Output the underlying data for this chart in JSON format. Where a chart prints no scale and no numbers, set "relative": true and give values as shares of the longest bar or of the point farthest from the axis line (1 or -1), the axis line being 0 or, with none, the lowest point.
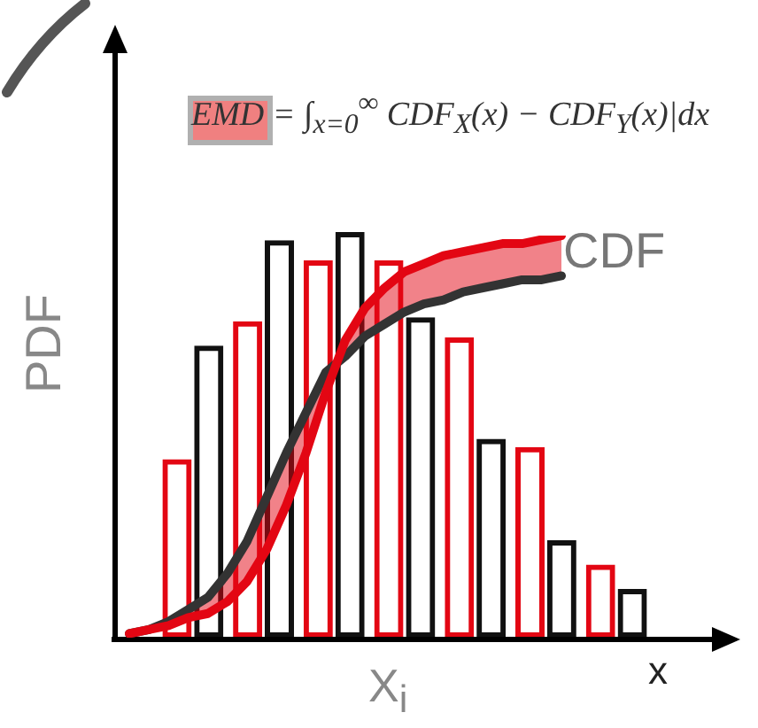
{
  "chart_data": [
    {
      "type": "bar",
      "relative": true,
      "xlabel": "X$_{i}$",
      "ylabel": "PDF",
      "annotations": [
        "x"
      ],
      "categories": [
        null,
        null,
        null,
        null,
        null,
        null,
        null
      ],
      "series": [
        {
          "color": "#e30613",
          "values": [
            0.44,
            0.78,
            0.93,
            0.93,
            0.74,
            0.47,
            0.18
          ]
        },
        {
          "color": "#111111",
          "values": [
            0.72,
            0.98,
            1,
            0.79,
            0.49,
            0.24,
            0.12
          ]
        }
      ]
    },
    {
      "type": "line",
      "relative": true,
      "annotations": [
        "EMD = ∫$_{x=0}$$^{∞}$ CDF$_{X}$(x) − CDF$_{Y}$(x)|dx",
        "CDF"
      ],
      "categories": [
        null,
        null,
        null,
        null,
        null,
        null,
        null,
        null,
        null,
        null,
        null,
        null,
        null,
        null,
        null,
        null,
        null,
        null,
        null,
        null,
        null,
        null,
        null
      ],
      "series": [
        {
          "color": "#e30613",
          "values": [
            0.01,
            0.02,
            0.03,
            0.05,
            0.06,
            0.09,
            0.14,
            0.22,
            0.33,
            0.46,
            0.61,
            0.74,
            0.82,
            0.87,
            0.91,
            0.93,
            0.95,
            0.96,
            0.97,
            0.98,
            0.98,
            0.99,
            1
          ],
          "upper": [
            0.01,
            0.02,
            0.03,
            0.05,
            0.06,
            0.09,
            0.14,
            0.22,
            0.33,
            0.46,
            0.61,
            0.74,
            0.82,
            0.87,
            0.91,
            0.93,
            0.95,
            0.96,
            0.97,
            0.98,
            0.98,
            0.99,
            1
          ],
          "lower": [
            0.01,
            0.02,
            0.04,
            0.07,
            0.1,
            0.16,
            0.24,
            0.35,
            0.46,
            0.56,
            0.66,
            0.7,
            0.75,
            0.78,
            0.81,
            0.83,
            0.84,
            0.86,
            0.87,
            0.88,
            0.89,
            0.89,
            0.9
          ]
        },
        {
          "color": "#333333",
          "values": [
            0.01,
            0.02,
            0.04,
            0.07,
            0.1,
            0.16,
            0.24,
            0.35,
            0.46,
            0.56,
            0.66,
            0.7,
            0.75,
            0.78,
            0.81,
            0.83,
            0.84,
            0.86,
            0.87,
            0.88,
            0.89,
            0.89,
            0.9
          ]
        }
      ]
    }
  ]
}
